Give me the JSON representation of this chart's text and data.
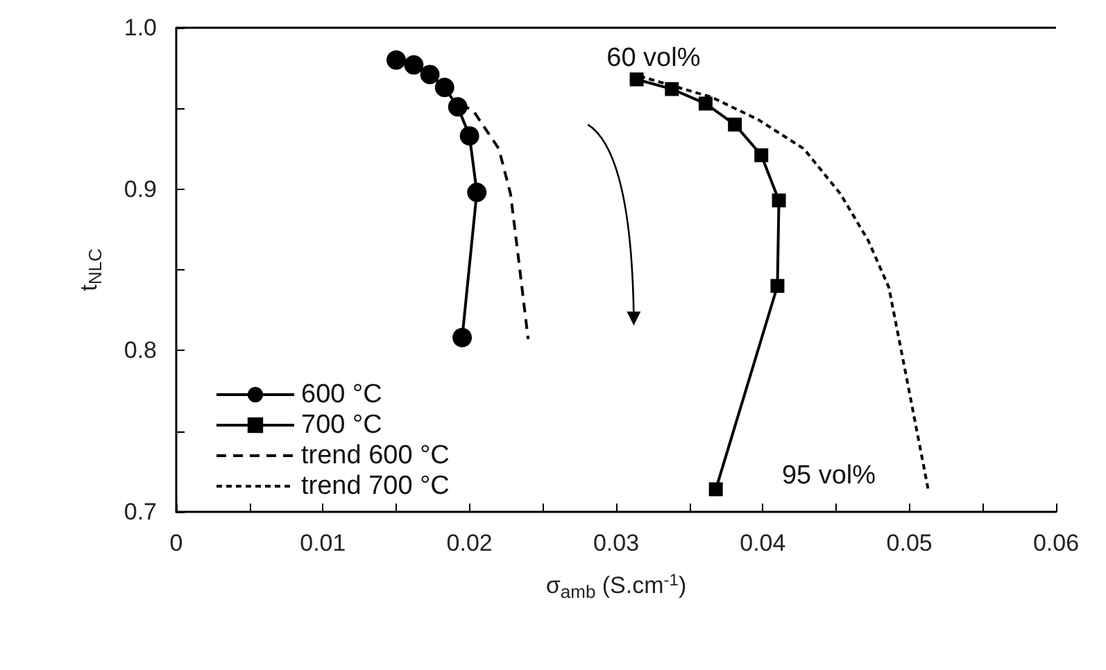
{
  "chart_data": {
    "type": "line",
    "xlabel": "σ$_{amb}$ (S.cm$^{-1}$)",
    "ylabel": "t$_{NLC}$",
    "xlim": [
      0,
      0.06
    ],
    "ylim": [
      0.7,
      1.0
    ],
    "xticks": [
      0,
      {
        "value": 0.005,
        "label": null
      },
      0.01,
      {
        "value": 0.015,
        "label": null
      },
      0.02,
      {
        "value": 0.025,
        "label": null
      },
      0.03,
      {
        "value": 0.035,
        "label": null
      },
      0.04,
      {
        "value": 0.045,
        "label": null
      },
      0.05,
      {
        "value": 0.055,
        "label": null
      },
      0.06
    ],
    "yticks": [
      0.7,
      {
        "value": 0.75,
        "label": null
      },
      0.8,
      {
        "value": 0.85,
        "label": null
      },
      0.9,
      {
        "value": 0.95,
        "label": null
      },
      {
        "value": 1.0,
        "label": "1.0"
      }
    ],
    "grid": false,
    "legend": "bottom left",
    "series": [
      {
        "name": "600 °C",
        "color": "#000000",
        "marker": "circle",
        "line_style": "solid",
        "x": [
          0.015,
          0.0162,
          0.0173,
          0.0183,
          0.0192,
          0.02,
          0.0205,
          0.0195
        ],
        "values": [
          0.98,
          0.977,
          0.971,
          0.963,
          0.951,
          0.933,
          0.898,
          0.808
        ]
      },
      {
        "name": "700 °C",
        "color": "#000000",
        "marker": "square",
        "line_style": "solid",
        "x": [
          0.0314,
          0.0338,
          0.0361,
          0.0381,
          0.0399,
          0.0411,
          0.041,
          0.0368
        ],
        "values": [
          0.968,
          0.962,
          0.953,
          0.94,
          0.921,
          0.893,
          0.84,
          0.714
        ]
      },
      {
        "name": "trend 600 °C",
        "color": "#000000",
        "marker": "none",
        "line_style": "dashed",
        "x": [
          0.0194,
          0.0203,
          0.022,
          0.0228,
          0.0233,
          0.024
        ],
        "values": [
          0.953,
          0.948,
          0.925,
          0.897,
          0.86,
          0.807
        ]
      },
      {
        "name": "trend 700 °C",
        "color": "#000000",
        "marker": "none",
        "line_style": "dotted",
        "x": [
          0.0316,
          0.0365,
          0.0397,
          0.0428,
          0.0453,
          0.0472,
          0.0486,
          0.0497,
          0.0513
        ],
        "values": [
          0.97,
          0.957,
          0.943,
          0.925,
          0.897,
          0.868,
          0.839,
          0.788,
          0.713
        ]
      }
    ],
    "annotations": [
      "60 vol%",
      "95 vol%"
    ]
  }
}
